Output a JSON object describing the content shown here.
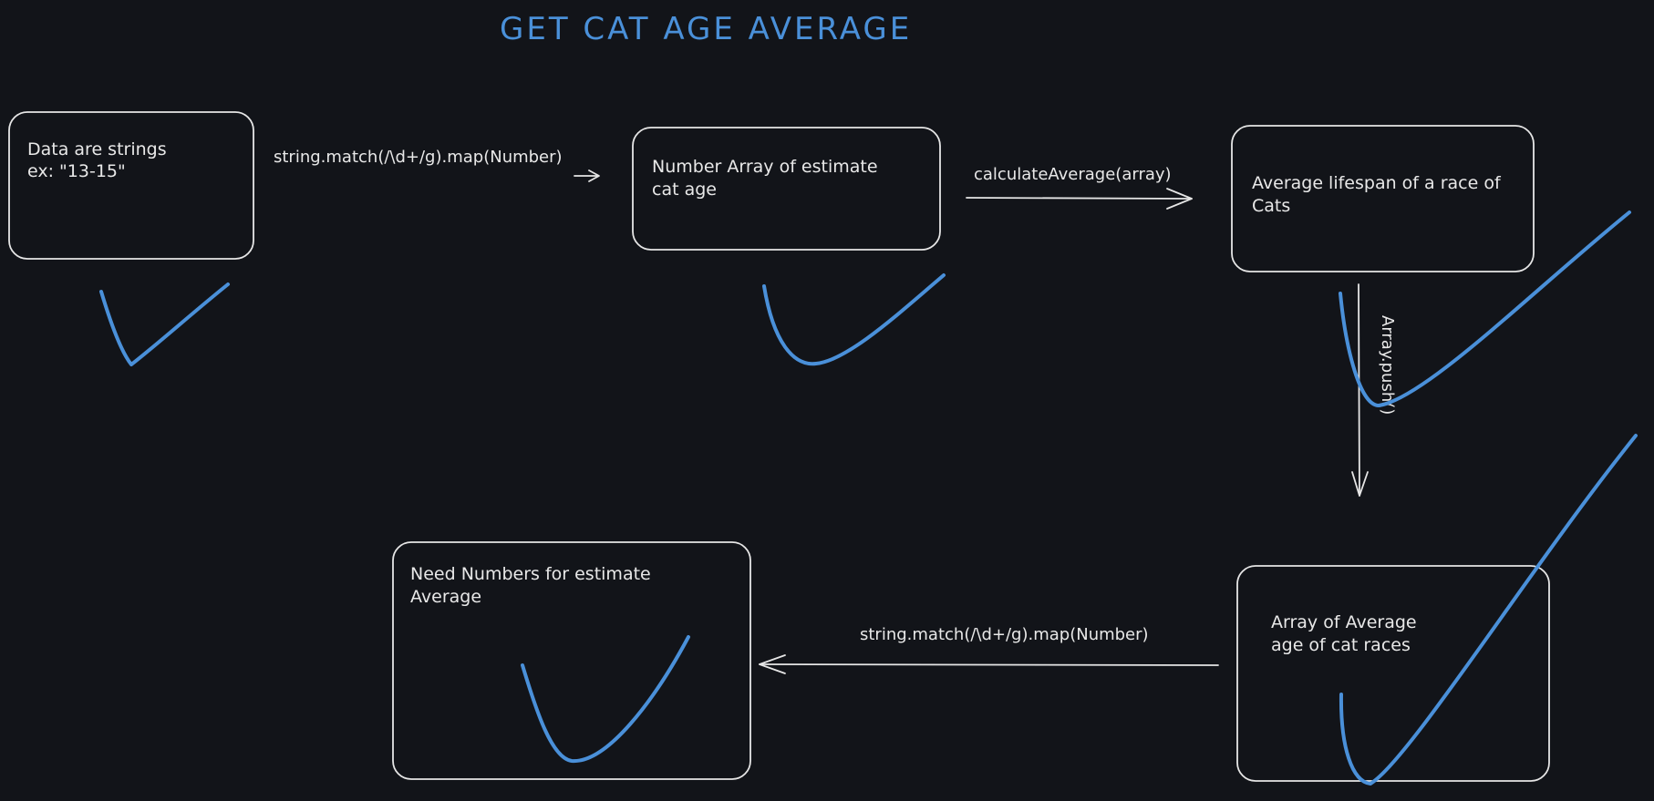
{
  "title": "GET CAT AGE AVERAGE",
  "nodes": [
    {
      "id": "box-data-strings",
      "lines": [
        "Data are strings",
        "ex: \"13-15\""
      ]
    },
    {
      "id": "box-number-array",
      "lines": [
        "Number Array of estimate",
        "cat age"
      ]
    },
    {
      "id": "box-average-lifespan",
      "lines": [
        "Average lifespan of a race of",
        "Cats"
      ]
    },
    {
      "id": "box-array-of-average",
      "lines": [
        "Array of Average",
        "age of cat races"
      ]
    },
    {
      "id": "box-need-numbers",
      "lines": [
        "Need Numbers for estimate",
        "Average"
      ]
    }
  ],
  "edges": [
    {
      "id": "edge-1",
      "from": "box-data-strings",
      "to": "box-number-array",
      "label": "string.match(/\\d+/g).map(Number)"
    },
    {
      "id": "edge-2",
      "from": "box-number-array",
      "to": "box-average-lifespan",
      "label": "calculateAverage(array)"
    },
    {
      "id": "edge-3",
      "from": "box-average-lifespan",
      "to": "box-array-of-average",
      "label": "Array.push()"
    },
    {
      "id": "edge-4",
      "from": "box-array-of-average",
      "to": "box-need-numbers",
      "label": "string.match(/\\d+/g).map(Number)"
    }
  ],
  "colors": {
    "background": "#121419",
    "title": "#4a90d9",
    "checkmark": "#4a90d9",
    "stroke": "#e6e6e6",
    "text": "#e8e8e8"
  },
  "icons": [
    "checkmark-icon"
  ]
}
